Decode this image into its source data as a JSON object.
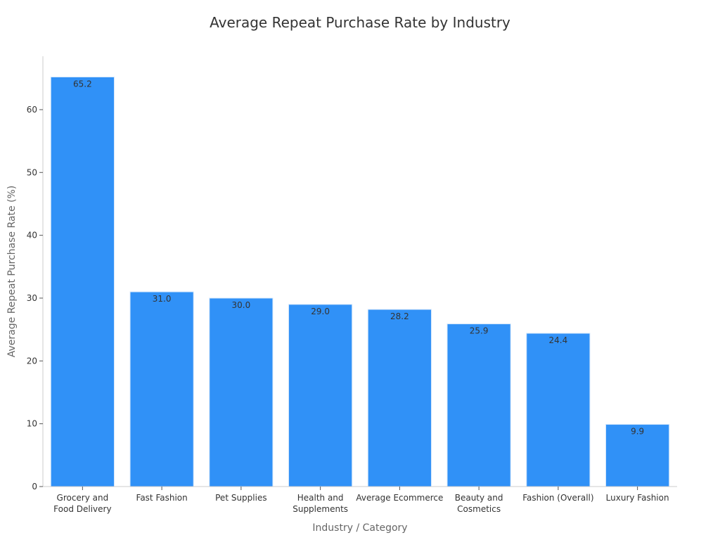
{
  "chart_data": {
    "type": "bar",
    "title": "Average Repeat Purchase Rate by Industry",
    "xlabel": "Industry / Category",
    "ylabel": "Average Repeat Purchase Rate (%)",
    "categories": [
      [
        "Grocery and",
        "Food Delivery"
      ],
      [
        "Fast Fashion"
      ],
      [
        "Pet Supplies"
      ],
      [
        "Health and",
        "Supplements"
      ],
      [
        "Average Ecommerce"
      ],
      [
        "Beauty and",
        "Cosmetics"
      ],
      [
        "Fashion (Overall)"
      ],
      [
        "Luxury Fashion"
      ]
    ],
    "values": [
      65.2,
      31.0,
      30.0,
      29.0,
      28.2,
      25.9,
      24.4,
      9.9
    ],
    "value_labels": [
      "65.2",
      "31.0",
      "30.0",
      "29.0",
      "28.2",
      "25.9",
      "24.4",
      "9.9"
    ],
    "ylim": [
      0,
      68.5
    ],
    "yticks": [
      0,
      10,
      20,
      30,
      40,
      50,
      60
    ],
    "grid": false,
    "bar_color": "#3091f7",
    "bar_edge_color": "#d6e8fb"
  }
}
